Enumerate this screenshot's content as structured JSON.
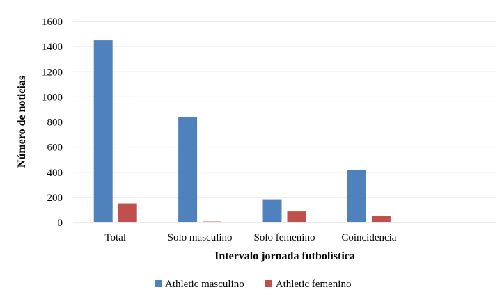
{
  "chart_data": {
    "type": "bar",
    "categories": [
      "Total",
      "Solo masculino",
      "Solo femenino",
      "Coincidencia"
    ],
    "series": [
      {
        "name": "Athletic masculino",
        "color": "#4f81bd",
        "values": [
          1450,
          838,
          185,
          420
        ]
      },
      {
        "name": "Athletic femenino",
        "color": "#c0504d",
        "values": [
          152,
          8,
          88,
          52
        ]
      }
    ],
    "xlabel": "Intervalo jornada futbolística",
    "ylabel": "Número de noticias",
    "ylim": [
      0,
      1600
    ],
    "yticks": [
      0,
      200,
      400,
      600,
      800,
      1000,
      1200,
      1400,
      1600
    ],
    "grid": true,
    "legend_position": "bottom",
    "empty_trailing_categories": 1
  }
}
